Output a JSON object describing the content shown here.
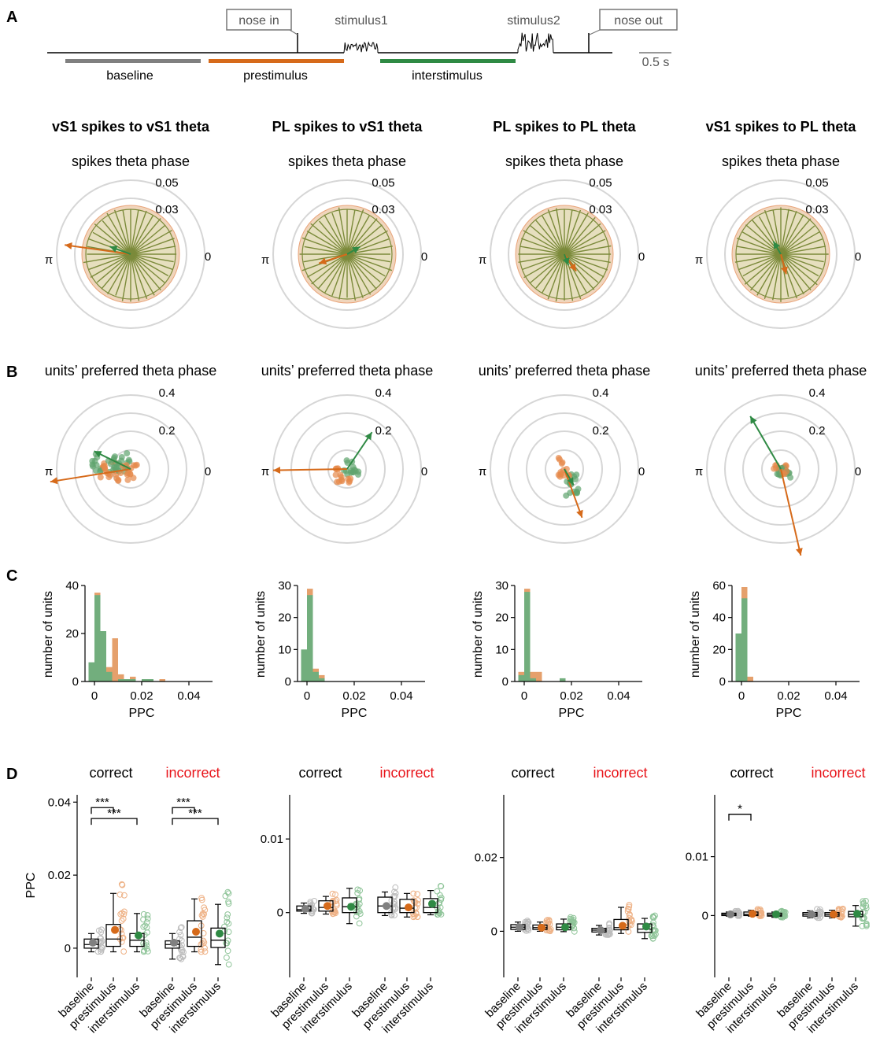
{
  "panels": {
    "A": "A",
    "B": "B",
    "C": "C",
    "D": "D"
  },
  "timeline": {
    "nose_in": "nose in",
    "nose_out": "nose out",
    "stimulus1": "stimulus1",
    "stimulus2": "stimulus2",
    "baseline": "baseline",
    "prestimulus": "prestimulus",
    "interstimulus": "interstimulus",
    "scale": "0.5 s"
  },
  "colors": {
    "baseline": "#808080",
    "prestimulus": "#d66a1a",
    "interstimulus": "#2f8a44",
    "incorrect": "#e8141a"
  },
  "chart_data": [
    {
      "type": "polar_histogram",
      "panel": "A",
      "subtitle": "spikes theta phase",
      "radial_ticks": [
        "0.03",
        "0.05"
      ],
      "angle_labels": {
        "zero": "0",
        "pi": "π"
      },
      "columns": [
        {
          "title": "vS1 spikes to vS1 theta",
          "prestimulus_vector": {
            "angle_deg": 172,
            "length": 0.045
          },
          "interstimulus_vector": {
            "angle_deg": 160,
            "length": 0.015
          }
        },
        {
          "title": "PL spikes to vS1 theta",
          "prestimulus_vector": {
            "angle_deg": 198,
            "length": 0.02
          },
          "interstimulus_vector": {
            "angle_deg": 30,
            "length": 0.01
          }
        },
        {
          "title": "PL spikes to PL theta",
          "prestimulus_vector": {
            "angle_deg": 305,
            "length": 0.014
          },
          "interstimulus_vector": {
            "angle_deg": 290,
            "length": 0.008
          }
        },
        {
          "title": "vS1 spikes to PL theta",
          "prestimulus_vector": {
            "angle_deg": 285,
            "length": 0.014
          },
          "interstimulus_vector": {
            "angle_deg": 120,
            "length": 0.01
          }
        }
      ]
    },
    {
      "type": "polar_scatter",
      "panel": "B",
      "subtitle": "units’ preferred theta phase",
      "radial_ticks": [
        "0.2",
        "0.4"
      ],
      "angle_labels": {
        "zero": "0",
        "pi": "π"
      },
      "columns": [
        {
          "prestimulus_vector": {
            "angle_deg": 189,
            "length": 0.44
          },
          "interstimulus_vector": {
            "angle_deg": 154,
            "length": 0.22
          }
        },
        {
          "prestimulus_vector": {
            "angle_deg": 181,
            "length": 0.4
          },
          "interstimulus_vector": {
            "angle_deg": 56,
            "length": 0.24
          }
        },
        {
          "prestimulus_vector": {
            "angle_deg": 290,
            "length": 0.28
          },
          "interstimulus_vector": {
            "angle_deg": 300,
            "length": 0.1
          }
        },
        {
          "prestimulus_vector": {
            "angle_deg": 283,
            "length": 0.48
          },
          "interstimulus_vector": {
            "angle_deg": 120,
            "length": 0.33
          }
        }
      ]
    },
    {
      "type": "histogram",
      "panel": "C",
      "xlabel": "PPC",
      "ylabel": "number of units",
      "xticks": [
        "0",
        "0.02",
        "0.04"
      ],
      "xlim": [
        -0.004,
        0.05
      ],
      "bin_width": 0.0025,
      "columns": [
        {
          "ylim": [
            0,
            40
          ],
          "yticks": [
            "0",
            "20",
            "40"
          ],
          "prestimulus": [
            2,
            37,
            10,
            6,
            18,
            3,
            0,
            2,
            0,
            0,
            0,
            0,
            1,
            0,
            0
          ],
          "interstimulus": [
            8,
            36,
            21,
            4,
            0,
            1,
            1,
            1,
            0,
            1,
            1,
            0,
            0,
            0,
            0
          ]
        },
        {
          "ylim": [
            0,
            30
          ],
          "yticks": [
            "0",
            "10",
            "20",
            "30"
          ],
          "prestimulus": [
            2,
            29,
            4,
            2
          ],
          "interstimulus": [
            10,
            27,
            3,
            1
          ]
        },
        {
          "ylim": [
            0,
            30
          ],
          "yticks": [
            "0",
            "10",
            "20",
            "30"
          ],
          "prestimulus": [
            3,
            29,
            3,
            3,
            0,
            0,
            0,
            0
          ],
          "interstimulus": [
            2,
            28,
            1,
            0,
            0,
            0,
            0,
            1
          ]
        },
        {
          "ylim": [
            0,
            60
          ],
          "yticks": [
            "0",
            "20",
            "40",
            "60"
          ],
          "prestimulus": [
            1,
            59,
            3
          ],
          "interstimulus": [
            30,
            52,
            0
          ]
        }
      ]
    },
    {
      "type": "boxplot",
      "panel": "D",
      "ylabel": "PPC",
      "group_labels": [
        "correct",
        "incorrect"
      ],
      "categories": [
        "baseline",
        "prestimulus",
        "interstimulus"
      ],
      "columns": [
        {
          "ylim": [
            -0.008,
            0.042
          ],
          "yticks": [
            "0",
            "0.02",
            "0.04"
          ],
          "boxes": [
            {
              "q1": 0.0,
              "median": 0.001,
              "q3": 0.0025,
              "wlo": -0.001,
              "whi": 0.004,
              "mean": 0.0015
            },
            {
              "q1": 0.0005,
              "median": 0.0025,
              "q3": 0.0065,
              "wlo": -0.001,
              "whi": 0.015,
              "mean": 0.005
            },
            {
              "q1": 0.0005,
              "median": 0.0022,
              "q3": 0.004,
              "wlo": -0.001,
              "whi": 0.0095,
              "mean": 0.0035
            },
            {
              "q1": 0.0,
              "median": 0.001,
              "q3": 0.002,
              "wlo": -0.003,
              "whi": 0.004,
              "mean": 0.0015
            },
            {
              "q1": 0.0005,
              "median": 0.003,
              "q3": 0.0075,
              "wlo": -0.001,
              "whi": 0.0135,
              "mean": 0.0045
            },
            {
              "q1": 0.0002,
              "median": 0.0022,
              "q3": 0.0055,
              "wlo": -0.0045,
              "whi": 0.012,
              "mean": 0.004
            }
          ],
          "significance": [
            {
              "from": 0,
              "to": 1,
              "label": "***",
              "level": 0.0385
            },
            {
              "from": 0,
              "to": 2,
              "label": "***",
              "level": 0.0355
            },
            {
              "from": 3,
              "to": 4,
              "label": "***",
              "level": 0.0385
            },
            {
              "from": 3,
              "to": 5,
              "label": "***",
              "level": 0.0355
            }
          ]
        },
        {
          "ylim": [
            -0.0088,
            0.016
          ],
          "yticks": [
            "0",
            "0.01"
          ],
          "boxes": [
            {
              "q1": 0.0002,
              "median": 0.0004,
              "q3": 0.0009,
              "wlo": -0.0001,
              "whi": 0.0013,
              "mean": 0.0005
            },
            {
              "q1": 0.0002,
              "median": 0.0007,
              "q3": 0.0016,
              "wlo": -0.0002,
              "whi": 0.0022,
              "mean": 0.0009
            },
            {
              "q1": 0.0,
              "median": 0.0008,
              "q3": 0.002,
              "wlo": -0.0015,
              "whi": 0.0033,
              "mean": 0.0008
            },
            {
              "q1": 0.0,
              "median": 0.0009,
              "q3": 0.0021,
              "wlo": -0.0004,
              "whi": 0.0028,
              "mean": 0.0009
            },
            {
              "q1": 0.0,
              "median": 0.0006,
              "q3": 0.0018,
              "wlo": -0.0006,
              "whi": 0.0026,
              "mean": 0.0007
            },
            {
              "q1": 0.0,
              "median": 0.0007,
              "q3": 0.0019,
              "wlo": -0.0003,
              "whi": 0.003,
              "mean": 0.0012
            }
          ],
          "significance": []
        },
        {
          "ylim": [
            -0.0125,
            0.037
          ],
          "yticks": [
            "0",
            "0.02"
          ],
          "boxes": [
            {
              "q1": 0.0005,
              "median": 0.0011,
              "q3": 0.0018,
              "wlo": 0.0,
              "whi": 0.0025,
              "mean": 0.0011
            },
            {
              "q1": 0.0005,
              "median": 0.001,
              "q3": 0.0017,
              "wlo": 0.0,
              "whi": 0.0025,
              "mean": 0.001
            },
            {
              "q1": 0.0004,
              "median": 0.0011,
              "q3": 0.002,
              "wlo": -0.0001,
              "whi": 0.0033,
              "mean": 0.0011
            },
            {
              "q1": -0.0002,
              "median": 0.0003,
              "q3": 0.0008,
              "wlo": -0.001,
              "whi": 0.0016,
              "mean": 0.0003
            },
            {
              "q1": 0.0004,
              "median": 0.001,
              "q3": 0.0032,
              "wlo": -0.0006,
              "whi": 0.0065,
              "mean": 0.0015
            },
            {
              "q1": -0.0003,
              "median": 0.0006,
              "q3": 0.002,
              "wlo": -0.002,
              "whi": 0.0035,
              "mean": 0.0013
            }
          ],
          "significance": []
        },
        {
          "ylim": [
            -0.0105,
            0.0205
          ],
          "yticks": [
            "0",
            "0.01"
          ],
          "boxes": [
            {
              "q1": 0.0,
              "median": 0.0002,
              "q3": 0.0004,
              "wlo": -0.0001,
              "whi": 0.0006,
              "mean": 0.0002
            },
            {
              "q1": 0.0,
              "median": 0.0002,
              "q3": 0.0006,
              "wlo": -0.0001,
              "whi": 0.0009,
              "mean": 0.0003
            },
            {
              "q1": -0.0001,
              "median": 0.0001,
              "q3": 0.0004,
              "wlo": -0.0003,
              "whi": 0.0006,
              "mean": 0.0002
            },
            {
              "q1": -0.0001,
              "median": 0.0002,
              "q3": 0.0005,
              "wlo": -0.0004,
              "whi": 0.0008,
              "mean": 0.0002
            },
            {
              "q1": -0.0001,
              "median": 0.0002,
              "q3": 0.0005,
              "wlo": -0.0004,
              "whi": 0.0009,
              "mean": 0.0002
            },
            {
              "q1": -0.0002,
              "median": 0.0002,
              "q3": 0.0007,
              "wlo": -0.0018,
              "whi": 0.0017,
              "mean": 0.0003
            }
          ],
          "significance": [
            {
              "from": 0,
              "to": 1,
              "label": "*",
              "level": 0.0172
            }
          ]
        }
      ]
    }
  ]
}
